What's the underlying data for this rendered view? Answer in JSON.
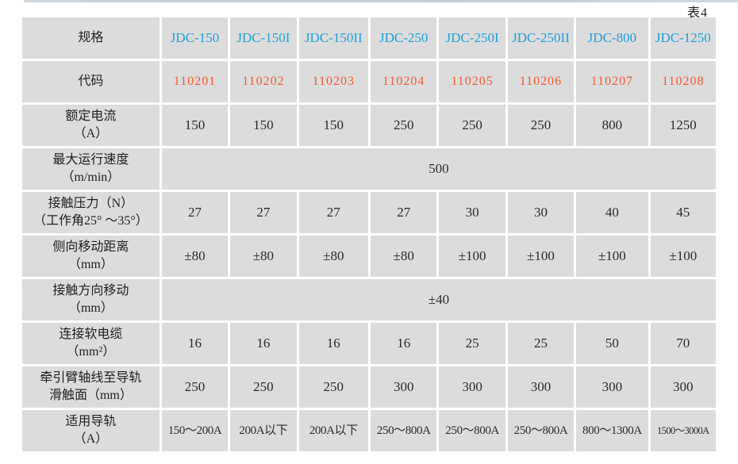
{
  "page": {
    "table_caption": "表4"
  },
  "colors": {
    "model_blue": "#1fa0d8",
    "code_orange": "#f15a31",
    "cell_gray": "#dcdcdc"
  },
  "chart_data": {
    "type": "table",
    "title": "表4",
    "columns": [
      "规格",
      "JDC-150",
      "JDC-150I",
      "JDC-150II",
      "JDC-250",
      "JDC-250I",
      "JDC-250II",
      "JDC-800",
      "JDC-1250"
    ],
    "rows": [
      {
        "row_class": "spec-row",
        "cell_name": "model-header-cell",
        "label_line1": "规格",
        "values": [
          "JDC-150",
          "JDC-150I",
          "JDC-150II",
          "JDC-250",
          "JDC-250I",
          "JDC-250II",
          "JDC-800",
          "JDC-1250"
        ]
      },
      {
        "row_class": "code-row",
        "cell_name": "code-cell",
        "label_line1": "代码",
        "values": [
          "110201",
          "110202",
          "110203",
          "110204",
          "110205",
          "110206",
          "110207",
          "110208"
        ]
      },
      {
        "row_class": "",
        "cell_name": "rated-current-cell",
        "label_line1": "额定电流",
        "label_line2": "（A）",
        "values": [
          "150",
          "150",
          "150",
          "250",
          "250",
          "250",
          "800",
          "1250"
        ]
      },
      {
        "row_class": "",
        "cell_name": "max-speed-cell",
        "label_line1": "最大运行速度",
        "label_line2": "（m/min）",
        "merged_value": "500"
      },
      {
        "row_class": "",
        "cell_name": "contact-pressure-cell",
        "label_line1": "接触压力（N）",
        "label_line2": "（工作角25° ～35°）",
        "values": [
          "27",
          "27",
          "27",
          "27",
          "30",
          "30",
          "40",
          "45"
        ]
      },
      {
        "row_class": "",
        "cell_name": "lateral-movement-cell",
        "label_line1": "侧向移动距离",
        "label_line2": "（mm）",
        "values": [
          "±80",
          "±80",
          "±80",
          "±80",
          "±100",
          "±100",
          "±100",
          "±100"
        ]
      },
      {
        "row_class": "",
        "cell_name": "contact-direction-cell",
        "label_line1": "接触方向移动",
        "label_line2": "（mm）",
        "merged_value": "±40"
      },
      {
        "row_class": "",
        "cell_name": "cable-section-cell",
        "label_line1": "连接软电缆",
        "label_line2": "（mm²）",
        "values": [
          "16",
          "16",
          "16",
          "16",
          "25",
          "25",
          "50",
          "70"
        ]
      },
      {
        "row_class": "",
        "cell_name": "arm-axis-distance-cell",
        "label_line1": "牵引臂轴线至导轨",
        "label_line2": "滑触面（mm）",
        "values": [
          "250",
          "250",
          "250",
          "300",
          "300",
          "300",
          "300",
          "300"
        ]
      },
      {
        "row_class": "rail-row",
        "cell_name": "applicable-rail-cell",
        "label_line1": "适用导轨",
        "label_line2": "（A）",
        "values": [
          "150～200A",
          "200A以下",
          "200A以下",
          "250～800A",
          "250～800A",
          "250～800A",
          "800～1300A",
          "1500～3000A"
        ]
      }
    ]
  }
}
